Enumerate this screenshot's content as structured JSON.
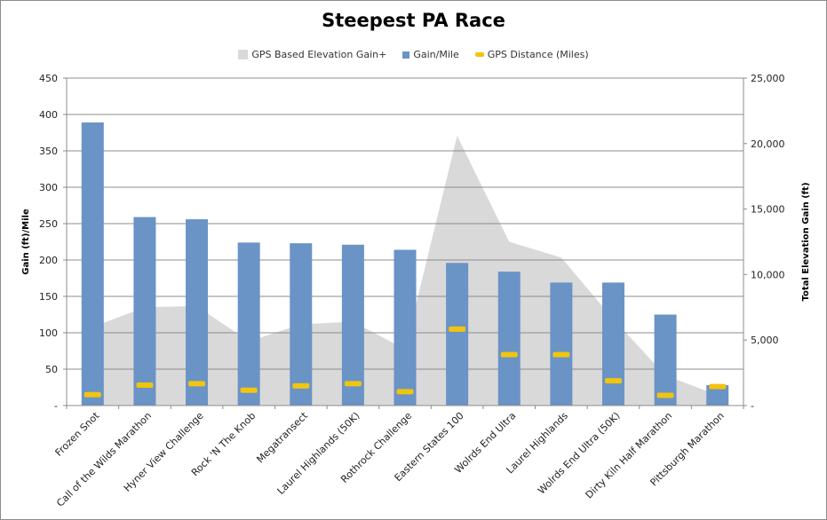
{
  "chart_data": {
    "type": "bar",
    "title": "Steepest PA Race",
    "categories": [
      "Frozen Snot",
      "Call of the Wilds Marathon",
      "Hyner View Challenge",
      "Rock 'N The Knob",
      "Megatransect",
      "Laurel Highlands (50K)",
      "Rothrock Challenge",
      "Eastern States 100",
      "Wolrds End Ultra",
      "Laurel Highlands",
      "Wolrds End Ultra (50K)",
      "Dirty Kiln Half Marathon",
      "Pittsburgh Marathon"
    ],
    "series": [
      {
        "name": "GPS Based Elevation Gain+",
        "kind": "area",
        "axis": "right",
        "color": "#d9d9d9",
        "values": [
          6000,
          7500,
          7600,
          4900,
          6200,
          6400,
          4300,
          20600,
          12500,
          11300,
          6600,
          2300,
          800
        ]
      },
      {
        "name": "Gain/Mile",
        "kind": "bar",
        "axis": "left",
        "color": "#6a93c6",
        "values": [
          389,
          259,
          256,
          224,
          223,
          221,
          214,
          196,
          184,
          169,
          169,
          125,
          28
        ]
      },
      {
        "name": "GPS Distance (Miles)",
        "kind": "marker",
        "axis": "left",
        "color": "#f1c40f",
        "values": [
          15,
          28,
          30,
          21,
          27,
          30,
          19,
          105,
          70,
          70,
          34,
          14,
          26
        ]
      }
    ],
    "ylabel": "Gain (ft)/Mile",
    "ylim": [
      0,
      450
    ],
    "yticks": [
      "-",
      "50",
      "100",
      "150",
      "200",
      "250",
      "300",
      "350",
      "400",
      "450"
    ],
    "y2label": "Total Elevation Gain (ft)",
    "y2lim": [
      0,
      25000
    ],
    "y2ticks": [
      "-",
      "5,000",
      "10,000",
      "15,000",
      "20,000",
      "25,000"
    ],
    "grid": true,
    "legend_position": "top"
  }
}
